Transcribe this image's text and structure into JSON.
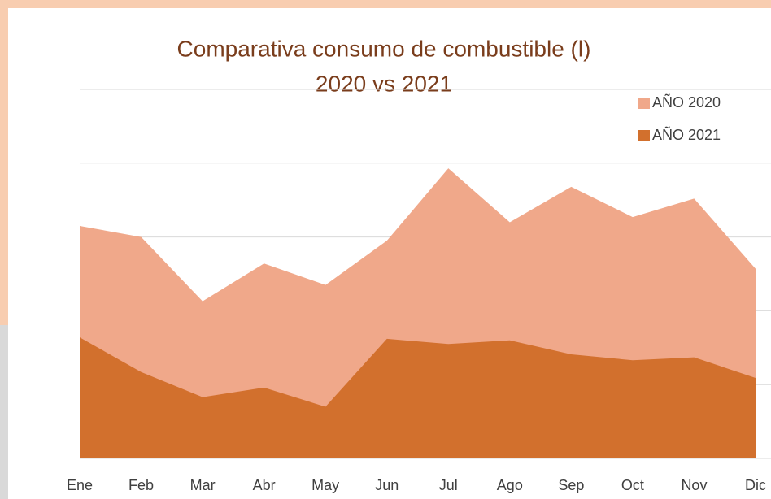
{
  "chart_data": {
    "type": "area",
    "title": [
      "Comparativa consumo de combustible (l)",
      "2020 vs 2021"
    ],
    "categories": [
      "Ene",
      "Feb",
      "Mar",
      "Abr",
      "May",
      "Jun",
      "Jul",
      "Ago",
      "Sep",
      "Oct",
      "Nov",
      "Dic"
    ],
    "series": [
      {
        "name": "AÑO 2020",
        "color": "#f0a88a",
        "values": [
          3.15,
          3.0,
          2.13,
          2.64,
          2.35,
          2.95,
          3.93,
          3.2,
          3.68,
          3.27,
          3.52,
          2.57
        ]
      },
      {
        "name": "AÑO 2021",
        "color": "#d2702d",
        "values": [
          1.64,
          1.17,
          0.83,
          0.96,
          0.7,
          1.62,
          1.55,
          1.6,
          1.41,
          1.33,
          1.37,
          1.09
        ]
      }
    ],
    "ylim": [
      0,
      5
    ],
    "yticks": [
      0,
      1,
      2,
      3,
      4,
      5
    ],
    "grid": true,
    "legend": "top-right"
  }
}
